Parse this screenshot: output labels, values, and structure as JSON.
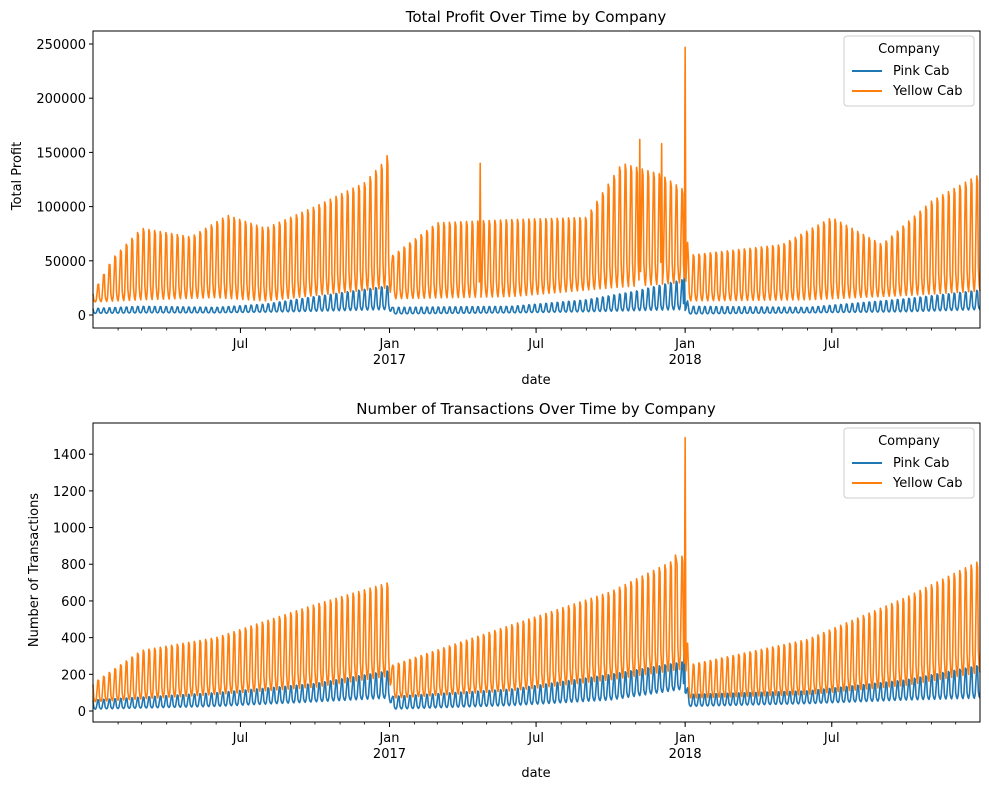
{
  "figure": {
    "legend_title": "Company",
    "colors": {
      "Pink Cab": "#1f77b4",
      "Yellow Cab": "#ff7f0e"
    }
  },
  "chart_data": [
    {
      "type": "line",
      "title": "Total Profit Over Time by Company",
      "xlabel": "date",
      "ylabel": "Total Profit",
      "xlim": [
        "2016-01-01",
        "2018-12-31"
      ],
      "ylim": [
        -12000,
        262000
      ],
      "x_ticks": [
        {
          "date": "2016-07-01",
          "label": "Jul",
          "sublabel": ""
        },
        {
          "date": "2017-01-01",
          "label": "Jan",
          "sublabel": "2017"
        },
        {
          "date": "2017-07-01",
          "label": "Jul",
          "sublabel": ""
        },
        {
          "date": "2018-01-01",
          "label": "Jan",
          "sublabel": "2018"
        },
        {
          "date": "2018-07-01",
          "label": "Jul",
          "sublabel": ""
        }
      ],
      "y_ticks": [
        0,
        50000,
        100000,
        150000,
        200000,
        250000
      ],
      "y_tick_labels": [
        "0",
        "50000",
        "100000",
        "150000",
        "200000",
        "250000"
      ],
      "legend": {
        "title": "Company",
        "position": "upper right",
        "entries": [
          "Pink Cab",
          "Yellow Cab"
        ]
      },
      "series": [
        {
          "name": "Pink Cab",
          "color": "#1f77b4",
          "low": [
            [
              "2016-01-01",
              1500
            ],
            [
              "2016-03-01",
              2000
            ],
            [
              "2016-06-01",
              2000
            ],
            [
              "2016-09-01",
              3000
            ],
            [
              "2016-11-01",
              4000
            ],
            [
              "2016-12-31",
              5000
            ],
            [
              "2017-01-05",
              1000
            ],
            [
              "2017-06-01",
              2000
            ],
            [
              "2017-09-01",
              3000
            ],
            [
              "2017-12-31",
              5000
            ],
            [
              "2018-01-05",
              1000
            ],
            [
              "2018-06-01",
              2000
            ],
            [
              "2018-10-01",
              3000
            ],
            [
              "2018-12-31",
              5000
            ]
          ],
          "high": [
            [
              "2016-01-01",
              6000
            ],
            [
              "2016-03-01",
              8000
            ],
            [
              "2016-06-01",
              7000
            ],
            [
              "2016-08-01",
              10000
            ],
            [
              "2016-10-01",
              17000
            ],
            [
              "2016-12-31",
              27000
            ],
            [
              "2017-01-05",
              7000
            ],
            [
              "2017-06-01",
              8000
            ],
            [
              "2017-09-01",
              14000
            ],
            [
              "2017-11-01",
              22000
            ],
            [
              "2017-12-31",
              33000
            ],
            [
              "2018-01-05",
              8000
            ],
            [
              "2018-06-01",
              7000
            ],
            [
              "2018-10-01",
              15000
            ],
            [
              "2018-12-31",
              23000
            ]
          ],
          "spikes": [
            [
              "2017-12-31",
              45000
            ]
          ]
        },
        {
          "name": "Yellow Cab",
          "color": "#ff7f0e",
          "low": [
            [
              "2016-01-01",
              12000
            ],
            [
              "2016-03-01",
              14000
            ],
            [
              "2016-06-01",
              16000
            ],
            [
              "2016-08-01",
              13000
            ],
            [
              "2016-10-01",
              18000
            ],
            [
              "2016-12-31",
              25000
            ],
            [
              "2017-01-05",
              15000
            ],
            [
              "2017-06-01",
              17000
            ],
            [
              "2017-10-01",
              25000
            ],
            [
              "2017-12-31",
              30000
            ],
            [
              "2018-01-05",
              13000
            ],
            [
              "2018-06-01",
              14000
            ],
            [
              "2018-10-01",
              18000
            ],
            [
              "2018-12-31",
              22000
            ]
          ],
          "high": [
            [
              "2016-01-01",
              20000
            ],
            [
              "2016-01-25",
              52000
            ],
            [
              "2016-03-01",
              80000
            ],
            [
              "2016-05-01",
              72000
            ],
            [
              "2016-06-15",
              92000
            ],
            [
              "2016-08-01",
              80000
            ],
            [
              "2016-10-01",
              100000
            ],
            [
              "2016-12-01",
              122000
            ],
            [
              "2016-12-31",
              146000
            ],
            [
              "2017-01-05",
              55000
            ],
            [
              "2017-03-01",
              85000
            ],
            [
              "2017-06-01",
              88000
            ],
            [
              "2017-09-01",
              90000
            ],
            [
              "2017-10-15",
              140000
            ],
            [
              "2017-12-01",
              130000
            ],
            [
              "2017-12-31",
              115000
            ],
            [
              "2018-01-05",
              55000
            ],
            [
              "2018-05-01",
              65000
            ],
            [
              "2018-07-01",
              90000
            ],
            [
              "2018-09-01",
              65000
            ],
            [
              "2018-11-01",
              105000
            ],
            [
              "2018-12-31",
              130000
            ]
          ],
          "spikes": [
            [
              "2016-12-29",
              147000
            ],
            [
              "2017-04-23",
              140000
            ],
            [
              "2017-11-06",
              162000
            ],
            [
              "2017-12-03",
              158000
            ],
            [
              "2018-01-01",
              247000
            ]
          ]
        }
      ]
    },
    {
      "type": "line",
      "title": "Number of Transactions Over Time by Company",
      "xlabel": "date",
      "ylabel": "Number of Transactions",
      "xlim": [
        "2016-01-01",
        "2018-12-31"
      ],
      "ylim": [
        -60,
        1570
      ],
      "x_ticks": [
        {
          "date": "2016-07-01",
          "label": "Jul",
          "sublabel": ""
        },
        {
          "date": "2017-01-01",
          "label": "Jan",
          "sublabel": "2017"
        },
        {
          "date": "2017-07-01",
          "label": "Jul",
          "sublabel": ""
        },
        {
          "date": "2018-01-01",
          "label": "Jan",
          "sublabel": "2018"
        },
        {
          "date": "2018-07-01",
          "label": "Jul",
          "sublabel": ""
        }
      ],
      "y_ticks": [
        0,
        200,
        400,
        600,
        800,
        1000,
        1200,
        1400
      ],
      "y_tick_labels": [
        "0",
        "200",
        "400",
        "600",
        "800",
        "1000",
        "1200",
        "1400"
      ],
      "legend": {
        "title": "Company",
        "position": "upper right",
        "entries": [
          "Pink Cab",
          "Yellow Cab"
        ]
      },
      "series": [
        {
          "name": "Pink Cab",
          "color": "#1f77b4",
          "low": [
            [
              "2016-01-01",
              10
            ],
            [
              "2016-06-01",
              25
            ],
            [
              "2016-10-01",
              50
            ],
            [
              "2016-12-31",
              70
            ],
            [
              "2017-01-05",
              10
            ],
            [
              "2017-06-01",
              30
            ],
            [
              "2017-10-01",
              60
            ],
            [
              "2017-12-31",
              120
            ],
            [
              "2018-01-05",
              25
            ],
            [
              "2018-06-01",
              40
            ],
            [
              "2018-10-01",
              60
            ],
            [
              "2018-12-31",
              70
            ]
          ],
          "high": [
            [
              "2016-01-01",
              60
            ],
            [
              "2016-06-01",
              100
            ],
            [
              "2016-10-01",
              150
            ],
            [
              "2016-12-31",
              220
            ],
            [
              "2017-01-05",
              80
            ],
            [
              "2017-06-01",
              120
            ],
            [
              "2017-10-01",
              200
            ],
            [
              "2017-12-31",
              270
            ],
            [
              "2018-01-05",
              90
            ],
            [
              "2018-06-01",
              110
            ],
            [
              "2018-10-01",
              170
            ],
            [
              "2018-12-31",
              250
            ]
          ],
          "spikes": [
            [
              "2017-12-31",
              520
            ]
          ]
        },
        {
          "name": "Yellow Cab",
          "color": "#ff7f0e",
          "low": [
            [
              "2016-01-01",
              50
            ],
            [
              "2016-06-01",
              90
            ],
            [
              "2016-10-01",
              130
            ],
            [
              "2016-12-31",
              190
            ],
            [
              "2017-01-05",
              70
            ],
            [
              "2017-06-01",
              110
            ],
            [
              "2017-10-01",
              170
            ],
            [
              "2017-12-31",
              230
            ],
            [
              "2018-01-05",
              70
            ],
            [
              "2018-06-01",
              90
            ],
            [
              "2018-10-01",
              140
            ],
            [
              "2018-12-31",
              210
            ]
          ],
          "high": [
            [
              "2016-01-01",
              150
            ],
            [
              "2016-03-01",
              330
            ],
            [
              "2016-06-01",
              400
            ],
            [
              "2016-10-01",
              580
            ],
            [
              "2016-12-31",
              700
            ],
            [
              "2017-01-05",
              250
            ],
            [
              "2017-06-01",
              470
            ],
            [
              "2017-10-01",
              650
            ],
            [
              "2017-12-31",
              850
            ],
            [
              "2018-01-05",
              250
            ],
            [
              "2018-06-01",
              390
            ],
            [
              "2018-10-01",
              620
            ],
            [
              "2018-12-31",
              820
            ]
          ],
          "spikes": [
            [
              "2017-12-20",
              850
            ],
            [
              "2018-01-01",
              1490
            ]
          ]
        }
      ]
    }
  ]
}
